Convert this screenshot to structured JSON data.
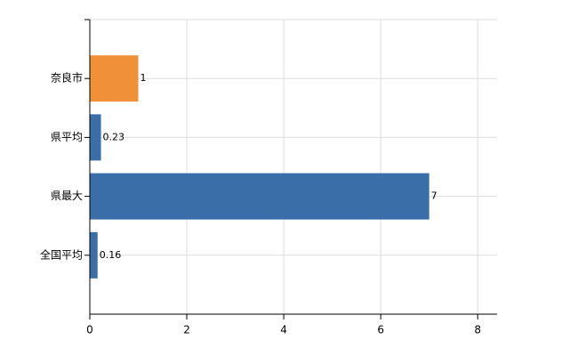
{
  "chart_data": {
    "type": "bar",
    "orientation": "horizontal",
    "categories": [
      "奈良市",
      "県平均",
      "県最大",
      "全国平均"
    ],
    "values": [
      1,
      0.23,
      7,
      0.16
    ],
    "colors": [
      "#f0913a",
      "#3a6ea8",
      "#3a6ea8",
      "#3a6ea8"
    ],
    "xlim": [
      0,
      8.4
    ],
    "xticks": [
      0,
      2,
      4,
      6,
      8
    ],
    "grid": true
  }
}
